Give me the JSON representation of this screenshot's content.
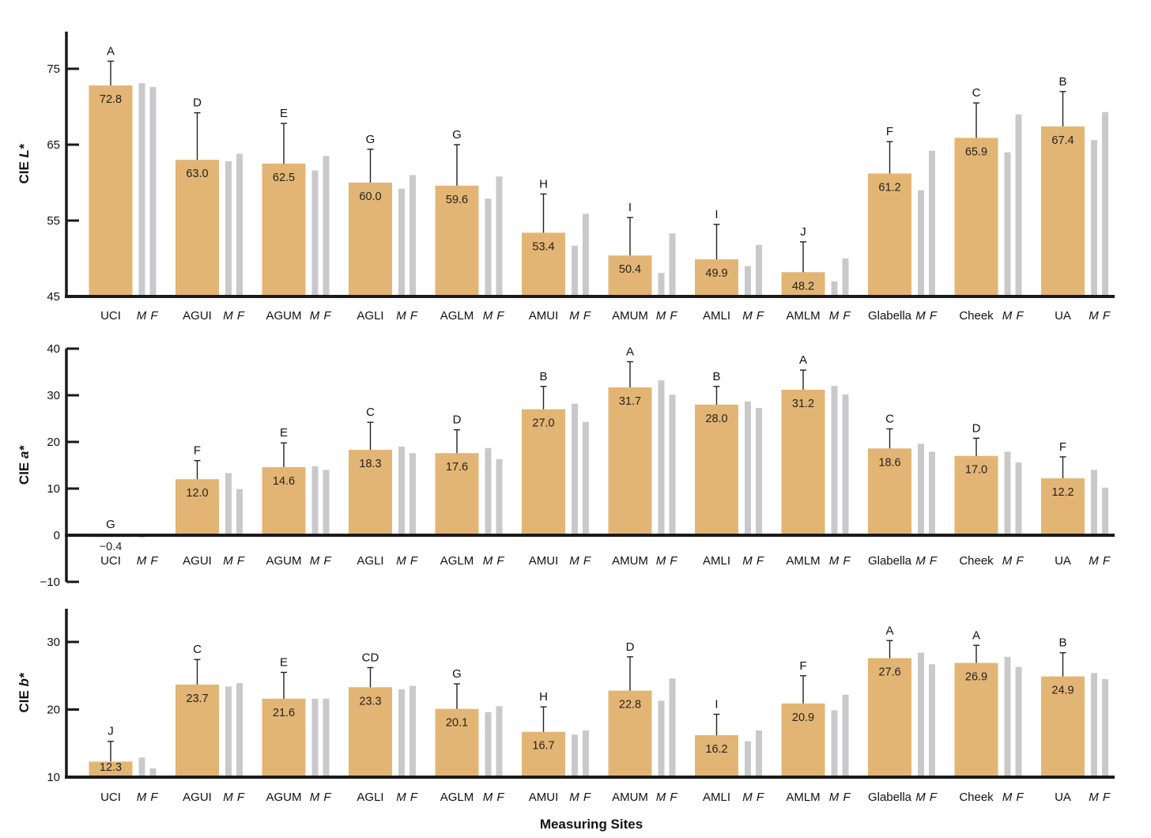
{
  "colors": {
    "mean_bar": "#e3b574",
    "sex_bar": "#c9c9cb",
    "axis": "#1a1a1a",
    "error_bar": "#222222"
  },
  "x_axis_title": "Measuring Sites",
  "mf_label": {
    "m": "M",
    "f": "F"
  },
  "chart_data": [
    {
      "type": "bar",
      "ylabel_prefix": "CIE ",
      "ylabel_var": "L*",
      "ylim": [
        45,
        80
      ],
      "yticks": [
        45,
        55,
        65,
        75
      ],
      "categories": [
        "UCI",
        "AGUI",
        "AGUM",
        "AGLI",
        "AGLM",
        "AMUI",
        "AMUM",
        "AMLI",
        "AMLM",
        "Glabella",
        "Cheek",
        "UA"
      ],
      "mean_labels": [
        "72.8",
        "63.0",
        "62.5",
        "60.0",
        "59.6",
        "53.4",
        "50.4",
        "49.9",
        "48.2",
        "61.2",
        "65.9",
        "67.4"
      ],
      "means": [
        72.8,
        63.0,
        62.5,
        60.0,
        59.6,
        53.4,
        50.4,
        49.9,
        48.2,
        61.2,
        65.9,
        67.4
      ],
      "sd_upper": [
        76.0,
        69.2,
        67.8,
        64.4,
        65.0,
        58.5,
        55.4,
        54.5,
        52.2,
        65.4,
        70.5,
        72.0
      ],
      "groups": [
        "A",
        "D",
        "E",
        "G",
        "G",
        "H",
        "I",
        "I",
        "J",
        "F",
        "C",
        "B"
      ],
      "series": [
        {
          "name": "M",
          "values": [
            73.1,
            62.8,
            61.6,
            59.2,
            57.9,
            51.7,
            48.1,
            49.0,
            47.0,
            59.0,
            64.0,
            65.6
          ]
        },
        {
          "name": "F",
          "values": [
            72.6,
            63.8,
            63.5,
            61.0,
            60.8,
            55.9,
            53.3,
            51.8,
            50.0,
            64.2,
            69.0,
            69.3
          ]
        }
      ]
    },
    {
      "type": "bar",
      "ylabel_prefix": "CIE ",
      "ylabel_var": "a*",
      "ylim": [
        -10,
        40
      ],
      "yticks": [
        -10,
        0,
        10,
        20,
        30,
        40
      ],
      "categories": [
        "UCI",
        "AGUI",
        "AGUM",
        "AGLI",
        "AGLM",
        "AMUI",
        "AMUM",
        "AMLI",
        "AMLM",
        "Glabella",
        "Cheek",
        "UA"
      ],
      "mean_labels": [
        "−0.4",
        "12.0",
        "14.6",
        "18.3",
        "17.6",
        "27.0",
        "31.7",
        "28.0",
        "31.2",
        "18.6",
        "17.0",
        "12.2"
      ],
      "means": [
        -0.4,
        12.0,
        14.6,
        18.3,
        17.6,
        27.0,
        31.7,
        28.0,
        31.2,
        18.6,
        17.0,
        12.2
      ],
      "sd_upper": [
        null,
        16.0,
        19.8,
        24.2,
        22.6,
        31.9,
        37.2,
        31.9,
        35.4,
        22.8,
        20.8,
        16.8
      ],
      "groups": [
        "G",
        "F",
        "E",
        "C",
        "D",
        "B",
        "A",
        "B",
        "A",
        "C",
        "D",
        "F"
      ],
      "series": [
        {
          "name": "M",
          "values": [
            -0.5,
            13.3,
            14.8,
            19.0,
            18.7,
            28.2,
            33.2,
            28.7,
            32.0,
            19.6,
            17.9,
            14.0
          ]
        },
        {
          "name": "F",
          "values": [
            -0.3,
            9.9,
            14.0,
            17.6,
            16.3,
            24.3,
            30.1,
            27.3,
            30.2,
            17.9,
            15.6,
            10.2
          ]
        }
      ]
    },
    {
      "type": "bar",
      "ylabel_prefix": "CIE ",
      "ylabel_var": "b*",
      "ylim": [
        10,
        35
      ],
      "yticks": [
        10,
        20,
        30
      ],
      "categories": [
        "UCI",
        "AGUI",
        "AGUM",
        "AGLI",
        "AGLM",
        "AMUI",
        "AMUM",
        "AMLI",
        "AMLM",
        "Glabella",
        "Cheek",
        "UA"
      ],
      "mean_labels": [
        "12.3",
        "23.7",
        "21.6",
        "23.3",
        "20.1",
        "16.7",
        "22.8",
        "16.2",
        "20.9",
        "27.6",
        "26.9",
        "24.9"
      ],
      "means": [
        12.3,
        23.7,
        21.6,
        23.3,
        20.1,
        16.7,
        22.8,
        16.2,
        20.9,
        27.6,
        26.9,
        24.9
      ],
      "sd_upper": [
        15.3,
        27.4,
        25.5,
        26.2,
        23.8,
        20.4,
        27.8,
        19.3,
        25.0,
        30.2,
        29.5,
        28.4
      ],
      "groups": [
        "J",
        "C",
        "E",
        "CD",
        "G",
        "H",
        "D",
        "I",
        "F",
        "A",
        "A",
        "B"
      ],
      "series": [
        {
          "name": "M",
          "values": [
            12.9,
            23.4,
            21.6,
            23.0,
            19.6,
            16.3,
            21.3,
            15.3,
            19.9,
            28.4,
            27.8,
            25.4
          ]
        },
        {
          "name": "F",
          "values": [
            11.3,
            23.9,
            21.6,
            23.5,
            20.5,
            16.9,
            24.6,
            16.9,
            22.2,
            26.7,
            26.3,
            24.5
          ]
        }
      ]
    }
  ]
}
